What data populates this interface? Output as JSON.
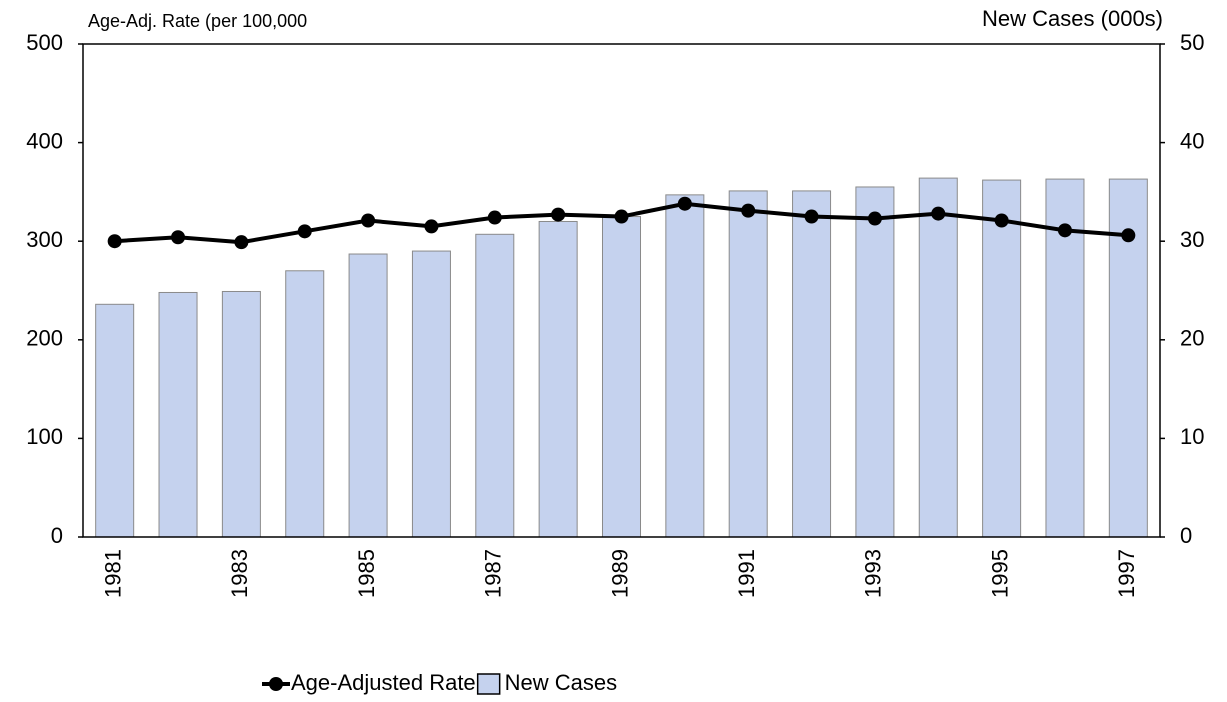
{
  "chart_data": {
    "type": "combo",
    "y_label": "Age-Adj. Rate (per 100,000",
    "y2_label": "New Cases (000s)",
    "categories": [
      "1981",
      null,
      "1983",
      null,
      "1985",
      null,
      "1987",
      null,
      "1989",
      null,
      "1991",
      null,
      "1993",
      null,
      "1995",
      null,
      "1997"
    ],
    "series": [
      {
        "name": "Age-Adjusted Rate",
        "type": "line",
        "color": "#000000",
        "axis": "y",
        "values": [
          300,
          304,
          299,
          310,
          321,
          315,
          324,
          327,
          325,
          338,
          331,
          325,
          323,
          328,
          321,
          311,
          306
        ]
      },
      {
        "name": "New Cases",
        "type": "bar",
        "color": "#c5d2ee",
        "axis": "y2",
        "values": [
          23.6,
          24.8,
          24.9,
          27.0,
          28.7,
          29.0,
          30.7,
          32.0,
          32.5,
          34.7,
          35.1,
          35.1,
          35.5,
          36.4,
          36.2,
          36.3,
          36.3
        ]
      }
    ],
    "ylim": [
      0,
      500
    ],
    "yticks": [
      0,
      100,
      200,
      300,
      400,
      500
    ],
    "y2lim": [
      0,
      50
    ],
    "y2ticks": [
      0,
      10,
      20,
      30,
      40,
      50
    ],
    "legend": "bottom"
  }
}
